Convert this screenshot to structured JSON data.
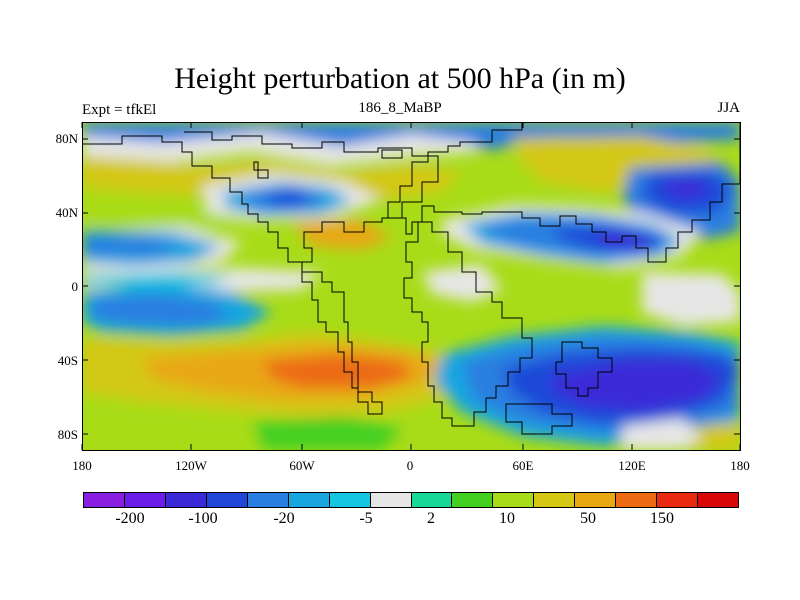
{
  "title": "Height perturbation at 500 hPa (in m)",
  "left_label": "Expt = tfkEl",
  "center_label": "186_8_MaBP",
  "right_label": "JJA",
  "y_ticks": [
    "80N",
    "40N",
    "0",
    "40S",
    "80S"
  ],
  "x_ticks": [
    "180",
    "120W",
    "60W",
    "0",
    "60E",
    "120E",
    "180"
  ],
  "colorbar": {
    "colors": [
      "#8a1ee0",
      "#6b1ee8",
      "#3a2ad8",
      "#1f48d8",
      "#2a7ee0",
      "#18a6e0",
      "#14c6e0",
      "#e6e6e6",
      "#18d898",
      "#44d020",
      "#a8dc18",
      "#d4c814",
      "#e8a814",
      "#ec6a14",
      "#e82a10",
      "#d80808"
    ],
    "labels": [
      "-200",
      "-100",
      "-20",
      "-5",
      "2",
      "10",
      "50",
      "150"
    ]
  }
}
